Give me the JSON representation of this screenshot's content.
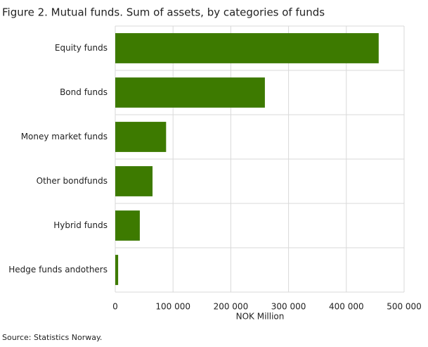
{
  "chart_data": {
    "type": "bar",
    "orientation": "horizontal",
    "title": "Figure 2. Mutual funds. Sum of assets, by categories of funds",
    "categories": [
      "Equity funds",
      "Bond funds",
      "Money market funds",
      "Other bondfunds",
      "Hybrid funds",
      "Hedge funds andothers"
    ],
    "values": [
      456000,
      259000,
      88000,
      64500,
      42500,
      5000
    ],
    "color": "#3d7a00",
    "xlim": [
      0,
      500000
    ],
    "xticks": [
      0,
      {
        "value": 100000,
        "label": "100 000"
      },
      {
        "value": 200000,
        "label": "200 000"
      },
      {
        "value": 300000,
        "label": "300 000"
      },
      {
        "value": 400000,
        "label": "400 000"
      },
      {
        "value": 500000,
        "label": "500 000"
      }
    ],
    "xlabel": "NOK Million",
    "grid": true,
    "source": "Source: Statistics Norway."
  }
}
